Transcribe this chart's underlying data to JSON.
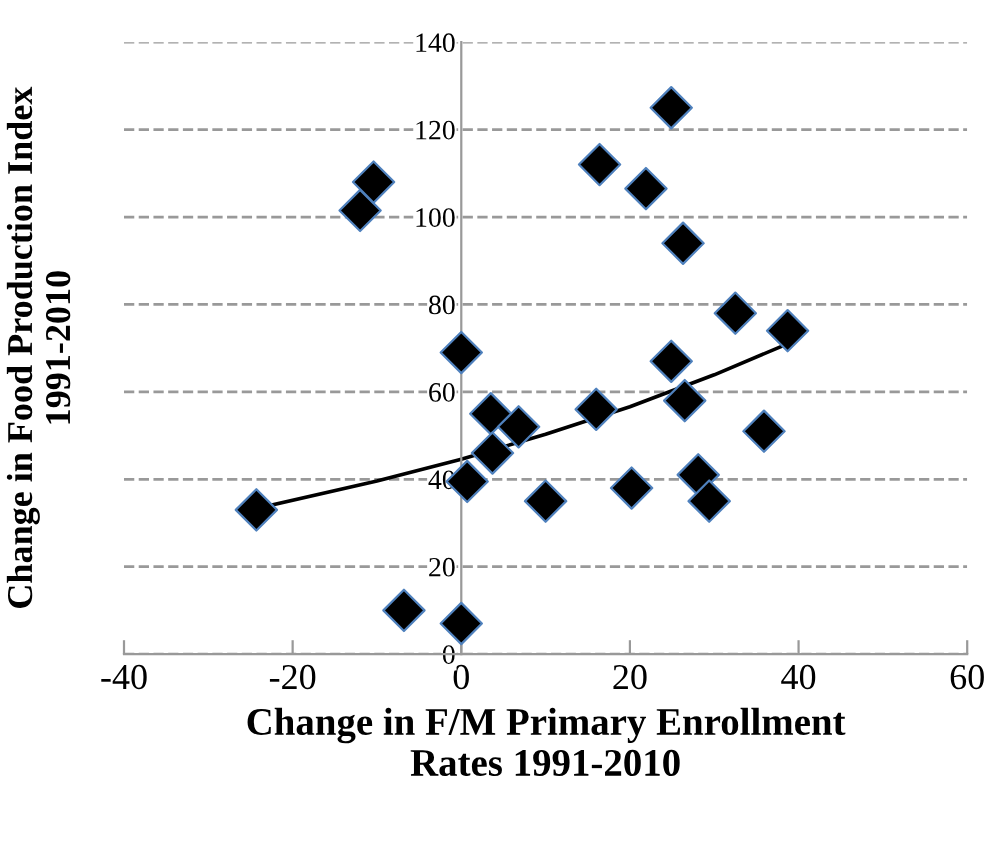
{
  "chart_data": {
    "type": "scatter",
    "xlabel": "Change in F/M Primary Enrollment\nRates 1991-2010",
    "ylabel": "Change in Food Production Index\n1991-2010",
    "xlim": [
      -40,
      60
    ],
    "xticks": [
      -40,
      -20,
      0,
      20,
      40,
      60
    ],
    "ylim": [
      0,
      140
    ],
    "yticks": [
      0,
      20,
      40,
      60,
      80,
      100,
      120,
      140
    ],
    "grid": "y",
    "marker": "diamond",
    "legend": false,
    "series": [
      {
        "color": "#000000",
        "x": [
          -24.3,
          -12,
          -10.4,
          -6.8,
          0,
          0,
          0.7,
          3.5,
          3.7,
          6.8,
          10,
          16,
          16.4,
          20.2,
          21.9,
          24.9,
          24.9,
          26.3,
          26.5,
          28.1,
          29.4,
          32.5,
          35.9,
          38.7
        ],
        "values": [
          33,
          101.5,
          108,
          10,
          69,
          7,
          39.5,
          55,
          46,
          52,
          35,
          56,
          112,
          38,
          106.5,
          125,
          67,
          94,
          58,
          41,
          35,
          78,
          51,
          74
        ]
      },
      {
        "type": "line",
        "color": "#000000",
        "marker": "none",
        "x": [
          -24.3,
          -10,
          0,
          10,
          20,
          30,
          38.7
        ],
        "values": [
          33.3,
          39.6,
          44.6,
          50.3,
          56.6,
          63.9,
          71
        ]
      }
    ]
  }
}
